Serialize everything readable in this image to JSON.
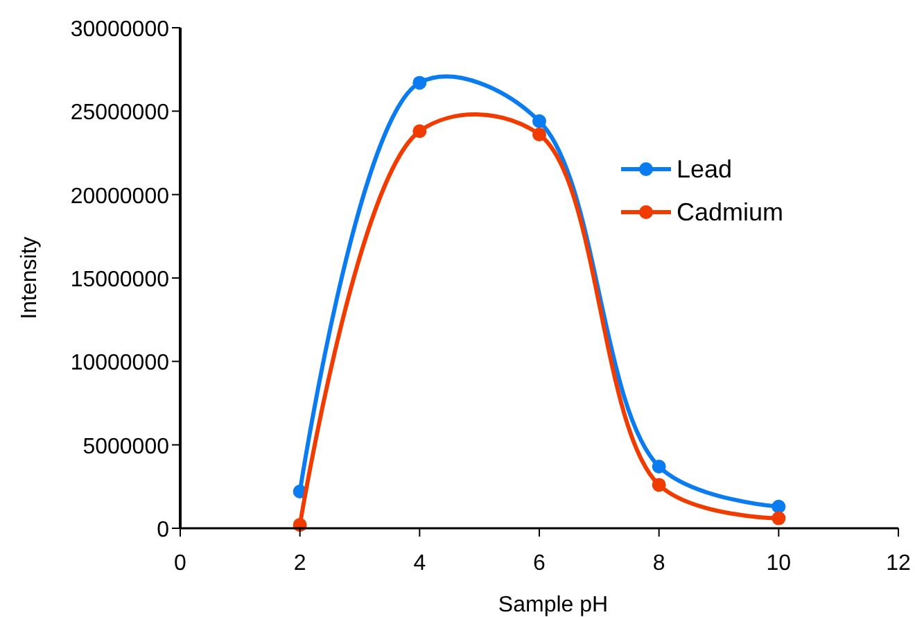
{
  "chart_data": {
    "type": "line",
    "xlabel": "Sample pH",
    "ylabel": "Intensity",
    "xlim": [
      0,
      12
    ],
    "xticks": [
      0,
      2,
      4,
      6,
      8,
      10,
      12
    ],
    "ylim": [
      0,
      30000000
    ],
    "yticks": [
      0,
      5000000,
      10000000,
      15000000,
      20000000,
      25000000,
      30000000
    ],
    "x": [
      2,
      4,
      6,
      8,
      10
    ],
    "series": [
      {
        "name": "Lead",
        "color": "#0a7cf0",
        "values": [
          2200000,
          26700000,
          24400000,
          3700000,
          1300000
        ]
      },
      {
        "name": "Cadmium",
        "color": "#f03c00",
        "values": [
          200000,
          23800000,
          23600000,
          2600000,
          600000
        ]
      }
    ],
    "marker": "circle",
    "line_style": "solid",
    "grid": false,
    "legend": "right"
  }
}
